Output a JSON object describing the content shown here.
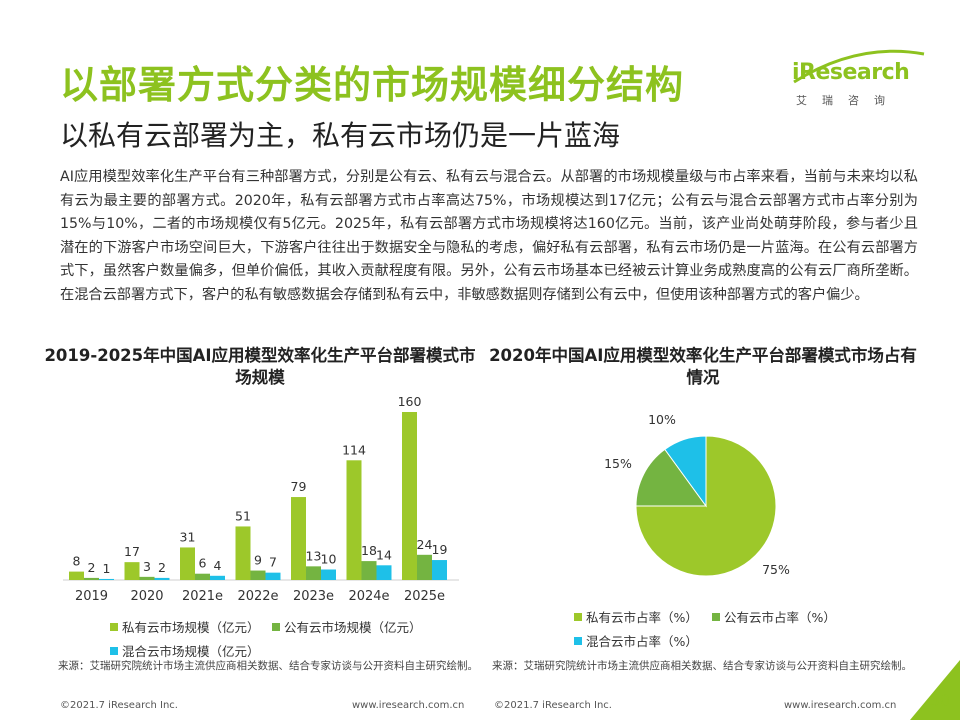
{
  "header": {
    "title": "以部署方式分类的市场规模细分结构",
    "subtitle": "以私有云部署为主，私有云市场仍是一片蓝海"
  },
  "logo": {
    "text": "iResearch",
    "sub": "艾瑞咨询"
  },
  "body_text": "AI应用模型效率化生产平台有三种部署方式，分别是公有云、私有云与混合云。从部署的市场规模量级与市占率来看，当前与未来均以私有云为最主要的部署方式。2020年，私有云部署方式市占率高达75%，市场规模达到17亿元；公有云与混合云部署方式市占率分别为15%与10%，二者的市场规模仅有5亿元。2025年，私有云部署方式市场规模将达160亿元。当前，该产业尚处萌芽阶段，参与者少且潜在的下游客户市场空间巨大，下游客户往往出于数据安全与隐私的考虑，偏好私有云部署，私有云市场仍是一片蓝海。在公有云部署方式下，虽然客户数量偏多，但单价偏低，其收入贡献程度有限。另外，公有云市场基本已经被云计算业务成熟度高的公有云厂商所垄断。在混合云部署方式下，客户的私有敏感数据会存储到私有云中，非敏感数据则存储到公有云中，但使用该种部署方式的客户偏少。",
  "colors": {
    "private": "#9dc82a",
    "public": "#74b441",
    "hybrid": "#1ec0e8",
    "accent": "#8dc21f"
  },
  "chart_data": [
    {
      "type": "bar",
      "title": "2019-2025年中国AI应用模型效率化生产平台部署模式市场规模",
      "categories": [
        "2019",
        "2020",
        "2021e",
        "2022e",
        "2023e",
        "2024e",
        "2025e"
      ],
      "series": [
        {
          "name": "私有云市场规模（亿元）",
          "values": [
            8,
            17,
            31,
            51,
            79,
            114,
            160
          ]
        },
        {
          "name": "公有云市场规模（亿元）",
          "values": [
            2,
            3,
            6,
            9,
            13,
            18,
            24
          ]
        },
        {
          "name": "混合云市场规模（亿元）",
          "values": [
            1,
            2,
            4,
            7,
            10,
            14,
            19
          ]
        }
      ],
      "ylim": [
        0,
        160
      ],
      "grid": false,
      "legend": "bottom"
    },
    {
      "type": "pie",
      "title": "2020年中国AI应用模型效率化生产平台部署模式市场占有情况",
      "slices": [
        {
          "name": "私有云市占率（%）",
          "value": 75,
          "label": "75%"
        },
        {
          "name": "公有云市占率（%）",
          "value": 15,
          "label": "15%"
        },
        {
          "name": "混合云市占率（%）",
          "value": 10,
          "label": "10%"
        }
      ],
      "legend": "bottom"
    }
  ],
  "source_text": "来源：艾瑞研究院统计市场主流供应商相关数据、结合专家访谈与公开资料自主研究绘制。",
  "footer": {
    "copyright": "©2021.7 iResearch Inc.",
    "website": "www.iresearch.com.cn",
    "page": "30"
  }
}
